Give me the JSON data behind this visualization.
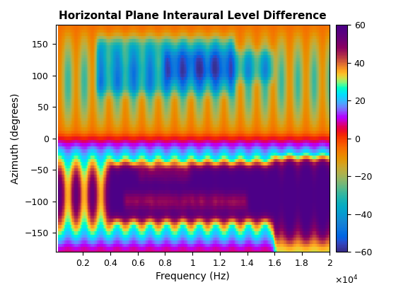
{
  "title": "Horizontal Plane Interaural Level Difference",
  "xlabel": "Frequency (Hz)",
  "ylabel": "Azimuth (degrees)",
  "freq_min": 0,
  "freq_max": 20000,
  "az_min": -180,
  "az_max": 180,
  "clim": [
    -60,
    60
  ],
  "colormap": "parula",
  "xticks": [
    2000,
    4000,
    6000,
    8000,
    10000,
    12000,
    14000,
    16000,
    18000,
    20000
  ],
  "xtick_labels": [
    "0.2",
    "0.4",
    "0.6",
    "0.8",
    "1",
    "1.2",
    "1.4",
    "1.6",
    "1.8",
    "2"
  ],
  "yticks": [
    -150,
    -100,
    -50,
    0,
    50,
    100,
    150
  ],
  "cticks": [
    -60,
    -40,
    -20,
    0,
    20,
    40,
    60
  ],
  "figsize": [
    5.6,
    4.2
  ],
  "dpi": 100
}
